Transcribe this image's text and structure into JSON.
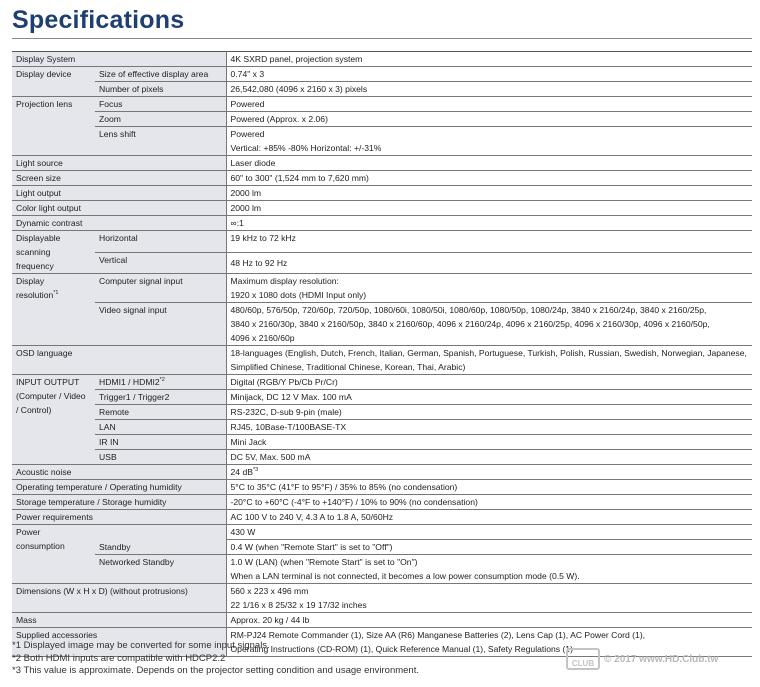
{
  "title": "Specifications",
  "groups": [
    {
      "label": "Display System",
      "rows": [
        {
          "value": [
            "4K SXRD panel, projection system"
          ]
        }
      ]
    },
    {
      "label": "Display device",
      "rows": [
        {
          "sub": "Size of effective display area",
          "value": [
            "0.74\" x 3"
          ]
        },
        {
          "sub": "Number of pixels",
          "value": [
            "26,542,080 (4096 x 2160 x 3) pixels"
          ]
        }
      ]
    },
    {
      "label": "Projection lens",
      "rows": [
        {
          "sub": "Focus",
          "value": [
            "Powered"
          ]
        },
        {
          "sub": "Zoom",
          "value": [
            "Powered (Approx. x 2.06)"
          ]
        },
        {
          "sub": "Lens shift",
          "value": [
            "Powered",
            "Vertical: +85% -80% Horizontal: +/-31%"
          ]
        }
      ]
    },
    {
      "label": "Light source",
      "rows": [
        {
          "value": [
            "Laser diode"
          ]
        }
      ]
    },
    {
      "label": "Screen size",
      "rows": [
        {
          "value": [
            "60\" to 300\" (1,524 mm to 7,620 mm)"
          ]
        }
      ]
    },
    {
      "label": "Light output",
      "rows": [
        {
          "value": [
            "2000 lm"
          ]
        }
      ]
    },
    {
      "label": "Color light output",
      "rows": [
        {
          "value": [
            "2000 lm"
          ]
        }
      ]
    },
    {
      "label": "Dynamic contrast",
      "rows": [
        {
          "value": [
            "∞:1"
          ]
        }
      ]
    },
    {
      "label": "Displayable scanning frequency",
      "label_lines": [
        "Displayable",
        "scanning",
        "frequency"
      ],
      "rows": [
        {
          "sub": "Horizontal",
          "value": [
            "19 kHz to 72 kHz"
          ]
        },
        {
          "sub": "Vertical",
          "value": [
            "48 Hz to 92 Hz"
          ],
          "middle": true
        }
      ]
    },
    {
      "label_lines": [
        "Display",
        "resolution"
      ],
      "label_sup": "*1",
      "rows": [
        {
          "sub": "Computer signal input",
          "value": [
            "Maximum display resolution:",
            "1920 x 1080 dots (HDMI Input only)"
          ]
        },
        {
          "sub": "Video signal input",
          "value": [
            "480/60p, 576/50p, 720/60p, 720/50p, 1080/60i, 1080/50i, 1080/60p, 1080/50p, 1080/24p, 3840 x 2160/24p, 3840 x 2160/25p,",
            "3840 x 2160/30p, 3840 x 2160/50p, 3840 x 2160/60p, 4096 x 2160/24p, 4096 x 2160/25p, 4096 x 2160/30p, 4096 x 2160/50p,",
            "4096 x 2160/60p"
          ]
        }
      ]
    },
    {
      "label": "OSD language",
      "rows": [
        {
          "value": [
            "18-languages (English, Dutch, French, Italian, German, Spanish, Portuguese, Turkish, Polish, Russian, Swedish, Norwegian, Japanese,",
            "Simplified Chinese, Traditional Chinese, Korean, Thai, Arabic)"
          ]
        }
      ]
    },
    {
      "label_lines": [
        "INPUT OUTPUT",
        "(Computer / Video",
        "/ Control)"
      ],
      "rows": [
        {
          "sub": "HDMI1 / HDMI2",
          "sub_sup": "*2",
          "value": [
            "Digital (RGB/Y Pb/Cb Pr/Cr)"
          ]
        },
        {
          "sub": "Trigger1 / Trigger2",
          "value": [
            "Minijack, DC 12 V Max. 100 mA"
          ]
        },
        {
          "sub": "Remote",
          "value": [
            "RS-232C, D-sub 9-pin (male)"
          ]
        },
        {
          "sub": "LAN",
          "value": [
            "RJ45, 10Base-T/100BASE-TX"
          ]
        },
        {
          "sub": "IR IN",
          "value": [
            "Mini Jack"
          ]
        },
        {
          "sub": "USB",
          "value": [
            "DC 5V, Max. 500 mA"
          ]
        }
      ]
    },
    {
      "label": "Acoustic noise",
      "rows": [
        {
          "value": [
            "24 dB"
          ],
          "value_sup": "*3"
        }
      ]
    },
    {
      "label": "Operating temperature / Operating humidity",
      "rows": [
        {
          "value": [
            "5°C to 35°C (41°F to 95°F) / 35% to 85% (no condensation)"
          ]
        }
      ]
    },
    {
      "label": "Storage temperature / Storage humidity",
      "rows": [
        {
          "value": [
            "-20°C to +60°C (-4°F to +140°F) / 10% to 90% (no condensation)"
          ]
        }
      ]
    },
    {
      "label": "Power requirements",
      "rows": [
        {
          "value": [
            "AC 100 V to 240 V, 4.3 A to 1.8 A, 50/60Hz"
          ]
        }
      ]
    },
    {
      "label_lines": [
        "Power",
        "consumption"
      ],
      "rows": [
        {
          "sub": "",
          "value": [
            "430 W"
          ],
          "nosubborder": true
        },
        {
          "sub": "Standby",
          "value": [
            "0.4 W (when \"Remote Start\" is set to \"Off\")"
          ]
        },
        {
          "sub": "Networked Standby",
          "value": [
            "1.0 W (LAN) (when \"Remote Start\" is set to \"On\")",
            "When a LAN terminal is not connected, it becomes a low power consumption mode (0.5 W)."
          ]
        }
      ]
    },
    {
      "label": "Dimensions (W x H x D) (without protrusions)",
      "rows": [
        {
          "value": [
            "560 x 223 x 496 mm",
            "22 1/16 x 8 25/32 x 19 17/32 inches"
          ]
        }
      ]
    },
    {
      "label": "Mass",
      "rows": [
        {
          "value": [
            "Approx. 20 kg / 44 lb"
          ]
        }
      ]
    },
    {
      "label": "Supplied accessories",
      "rows": [
        {
          "value": [
            "RM-PJ24 Remote Commander (1), Size AA (R6) Manganese Batteries (2), Lens Cap (1), AC Power Cord (1),",
            "Operating Instructions (CD-ROM) (1), Quick Reference Manual (1), Safety Regulations (1)"
          ]
        }
      ]
    }
  ],
  "footnotes": [
    "*1 Displayed image may be converted for some input signals.",
    "*2 Both HDMI inputs are compatible with HDCP2.2",
    "*3 This value is approximate. Depends on the projector setting condition and usage environment."
  ],
  "watermark": {
    "logo_text": "HD CLUB",
    "text": "© 2017 www.HD.Club.tw"
  },
  "colors": {
    "title": "#1d3f72",
    "label_bg": "#e5e6ec"
  }
}
